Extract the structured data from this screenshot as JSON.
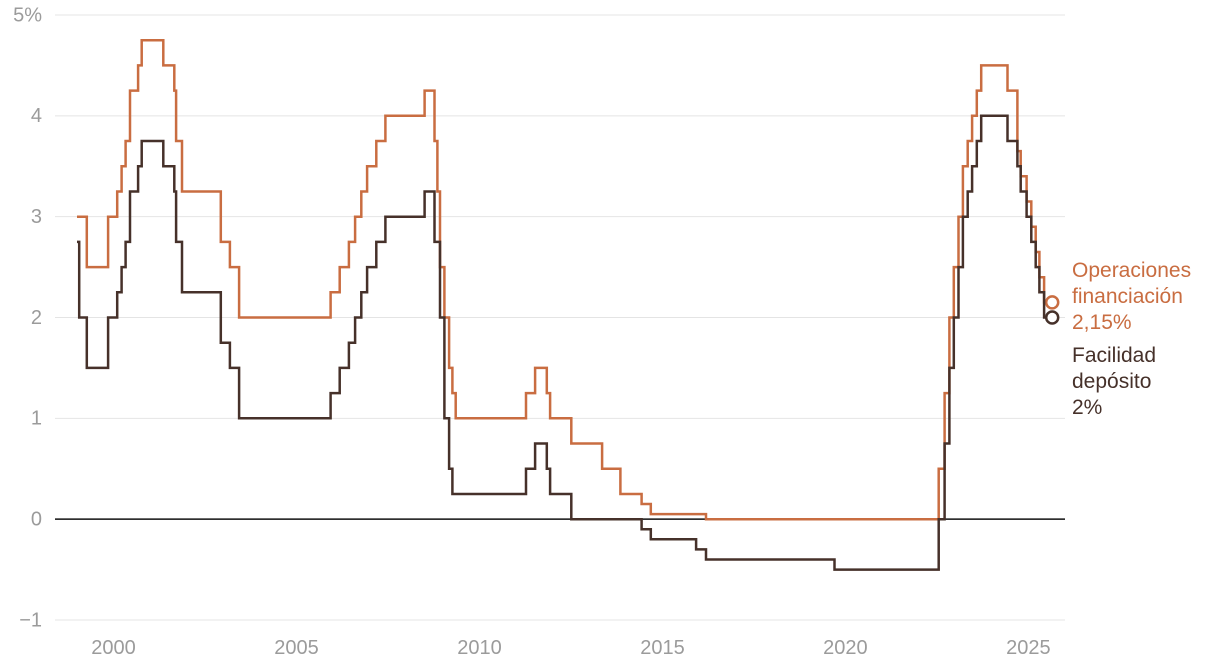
{
  "chart_data": {
    "type": "line",
    "step": true,
    "title": "",
    "xlabel": "",
    "ylabel": "",
    "xlim": [
      1998.4,
      2026.0
    ],
    "ylim": [
      -1,
      5
    ],
    "grid": "horizontal",
    "legend_position": "right-annotations",
    "x_ticks": [
      "2000",
      "2005",
      "2010",
      "2015",
      "2020",
      "2025"
    ],
    "x_tick_values": [
      2000,
      2005,
      2010,
      2015,
      2020,
      2025
    ],
    "y_ticks": [
      {
        "value": 5,
        "label": "5%"
      },
      {
        "value": 4,
        "label": "4"
      },
      {
        "value": 3,
        "label": "3"
      },
      {
        "value": 2,
        "label": "2"
      },
      {
        "value": 1,
        "label": "1"
      },
      {
        "value": 0,
        "label": "0"
      },
      {
        "value": -1,
        "label": "−1"
      }
    ],
    "colors": {
      "grid": "#e4e4e4",
      "zero_line": "#111111",
      "tick_text": "#9b9b9b",
      "background": "#ffffff"
    },
    "series": [
      {
        "name": "Operaciones financiación",
        "label_lines": [
          "Operaciones",
          "financiación"
        ],
        "end_label": "2,15%",
        "end_value": 2.15,
        "color": "#c96d41",
        "points": [
          [
            1999.0,
            3.0
          ],
          [
            1999.27,
            2.5
          ],
          [
            1999.85,
            3.0
          ],
          [
            2000.1,
            3.25
          ],
          [
            2000.22,
            3.5
          ],
          [
            2000.33,
            3.75
          ],
          [
            2000.45,
            4.25
          ],
          [
            2000.67,
            4.5
          ],
          [
            2000.77,
            4.75
          ],
          [
            2001.36,
            4.5
          ],
          [
            2001.66,
            4.25
          ],
          [
            2001.71,
            3.75
          ],
          [
            2001.87,
            3.25
          ],
          [
            2002.93,
            2.75
          ],
          [
            2003.18,
            2.5
          ],
          [
            2003.43,
            2.0
          ],
          [
            2005.93,
            2.25
          ],
          [
            2006.18,
            2.5
          ],
          [
            2006.43,
            2.75
          ],
          [
            2006.6,
            3.0
          ],
          [
            2006.77,
            3.25
          ],
          [
            2006.93,
            3.5
          ],
          [
            2007.18,
            3.75
          ],
          [
            2007.43,
            4.0
          ],
          [
            2008.5,
            4.25
          ],
          [
            2008.77,
            3.75
          ],
          [
            2008.85,
            3.25
          ],
          [
            2008.92,
            2.5
          ],
          [
            2009.04,
            2.0
          ],
          [
            2009.17,
            1.5
          ],
          [
            2009.26,
            1.25
          ],
          [
            2009.35,
            1.0
          ],
          [
            2011.27,
            1.25
          ],
          [
            2011.52,
            1.5
          ],
          [
            2011.84,
            1.25
          ],
          [
            2011.93,
            1.0
          ],
          [
            2012.51,
            0.75
          ],
          [
            2013.35,
            0.5
          ],
          [
            2013.85,
            0.25
          ],
          [
            2014.43,
            0.15
          ],
          [
            2014.68,
            0.05
          ],
          [
            2016.19,
            0.0
          ],
          [
            2022.55,
            0.5
          ],
          [
            2022.71,
            1.25
          ],
          [
            2022.84,
            2.0
          ],
          [
            2022.96,
            2.5
          ],
          [
            2023.09,
            3.0
          ],
          [
            2023.21,
            3.5
          ],
          [
            2023.34,
            3.75
          ],
          [
            2023.46,
            4.0
          ],
          [
            2023.59,
            4.25
          ],
          [
            2023.71,
            4.5
          ],
          [
            2024.43,
            4.25
          ],
          [
            2024.7,
            3.65
          ],
          [
            2024.79,
            3.4
          ],
          [
            2024.95,
            3.15
          ],
          [
            2025.08,
            2.9
          ],
          [
            2025.2,
            2.65
          ],
          [
            2025.3,
            2.4
          ],
          [
            2025.43,
            2.15
          ],
          [
            2025.65,
            2.15
          ]
        ]
      },
      {
        "name": "Facilidad depósito",
        "label_lines": [
          "Facilidad",
          "depósito"
        ],
        "end_label": "2%",
        "end_value": 2.0,
        "color": "#46312a",
        "points": [
          [
            1999.0,
            2.75
          ],
          [
            1999.06,
            2.0
          ],
          [
            1999.27,
            1.5
          ],
          [
            1999.85,
            2.0
          ],
          [
            2000.1,
            2.25
          ],
          [
            2000.22,
            2.5
          ],
          [
            2000.33,
            2.75
          ],
          [
            2000.45,
            3.25
          ],
          [
            2000.67,
            3.5
          ],
          [
            2000.77,
            3.75
          ],
          [
            2001.36,
            3.5
          ],
          [
            2001.66,
            3.25
          ],
          [
            2001.71,
            2.75
          ],
          [
            2001.87,
            2.25
          ],
          [
            2002.93,
            1.75
          ],
          [
            2003.18,
            1.5
          ],
          [
            2003.43,
            1.0
          ],
          [
            2005.93,
            1.25
          ],
          [
            2006.18,
            1.5
          ],
          [
            2006.43,
            1.75
          ],
          [
            2006.6,
            2.0
          ],
          [
            2006.77,
            2.25
          ],
          [
            2006.93,
            2.5
          ],
          [
            2007.18,
            2.75
          ],
          [
            2007.43,
            3.0
          ],
          [
            2008.5,
            3.25
          ],
          [
            2008.77,
            2.75
          ],
          [
            2008.92,
            2.0
          ],
          [
            2009.04,
            1.0
          ],
          [
            2009.17,
            0.5
          ],
          [
            2009.26,
            0.25
          ],
          [
            2011.27,
            0.5
          ],
          [
            2011.52,
            0.75
          ],
          [
            2011.84,
            0.5
          ],
          [
            2011.93,
            0.25
          ],
          [
            2012.51,
            0.0
          ],
          [
            2014.43,
            -0.1
          ],
          [
            2014.68,
            -0.2
          ],
          [
            2015.92,
            -0.3
          ],
          [
            2016.19,
            -0.4
          ],
          [
            2019.7,
            -0.5
          ],
          [
            2022.55,
            0.0
          ],
          [
            2022.71,
            0.75
          ],
          [
            2022.84,
            1.5
          ],
          [
            2022.96,
            2.0
          ],
          [
            2023.09,
            2.5
          ],
          [
            2023.21,
            3.0
          ],
          [
            2023.34,
            3.25
          ],
          [
            2023.46,
            3.5
          ],
          [
            2023.59,
            3.75
          ],
          [
            2023.71,
            4.0
          ],
          [
            2024.43,
            3.75
          ],
          [
            2024.7,
            3.5
          ],
          [
            2024.79,
            3.25
          ],
          [
            2024.95,
            3.0
          ],
          [
            2025.08,
            2.75
          ],
          [
            2025.2,
            2.5
          ],
          [
            2025.3,
            2.25
          ],
          [
            2025.43,
            2.0
          ],
          [
            2025.65,
            2.0
          ]
        ]
      }
    ]
  }
}
